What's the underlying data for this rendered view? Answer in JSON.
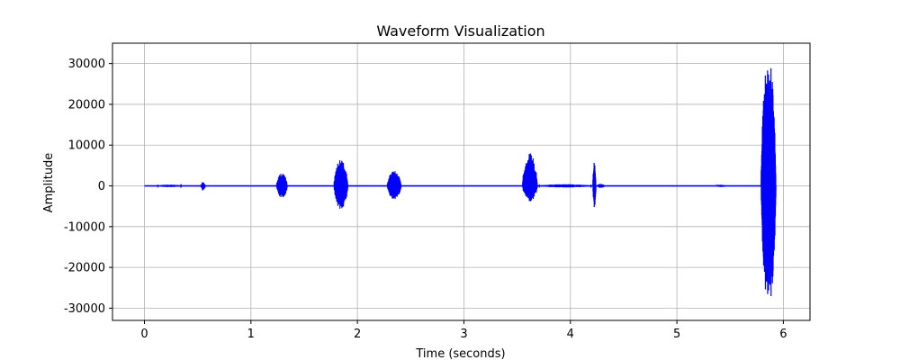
{
  "chart_data": {
    "type": "line",
    "title": "Waveform Visualization",
    "xlabel": "Time (seconds)",
    "ylabel": "Amplitude",
    "xlim": [
      -0.3,
      6.25
    ],
    "ylim": [
      -33000,
      35000
    ],
    "xticks": [
      0,
      1,
      2,
      3,
      4,
      5,
      6
    ],
    "yticks": [
      -30000,
      -20000,
      -10000,
      0,
      10000,
      20000,
      30000
    ],
    "xtick_labels": [
      "0",
      "1",
      "2",
      "3",
      "4",
      "5",
      "6"
    ],
    "ytick_labels": [
      "-30000",
      "-20000",
      "-10000",
      "0",
      "10000",
      "20000",
      "30000"
    ],
    "grid": true,
    "line_color": "#0000ff",
    "x_range": [
      0,
      5.93
    ],
    "bursts": [
      {
        "start": 0.12,
        "end": 0.35,
        "max": 300,
        "min": -300
      },
      {
        "start": 0.53,
        "end": 0.57,
        "max": 1000,
        "min": -1200
      },
      {
        "start": 1.24,
        "end": 1.34,
        "max": 3200,
        "min": -3000
      },
      {
        "start": 1.78,
        "end": 1.91,
        "max": 6500,
        "min": -5800
      },
      {
        "start": 2.28,
        "end": 2.41,
        "max": 3700,
        "min": -3300
      },
      {
        "start": 3.55,
        "end": 3.69,
        "max": 8000,
        "min": -3800
      },
      {
        "start": 3.7,
        "end": 4.2,
        "max": 400,
        "min": -400
      },
      {
        "start": 4.21,
        "end": 4.24,
        "max": 6000,
        "min": -5500
      },
      {
        "start": 4.25,
        "end": 4.32,
        "max": 500,
        "min": -500
      },
      {
        "start": 5.37,
        "end": 5.45,
        "max": 300,
        "min": -300
      },
      {
        "start": 5.79,
        "end": 5.93,
        "max": 32000,
        "min": -30000
      }
    ]
  }
}
